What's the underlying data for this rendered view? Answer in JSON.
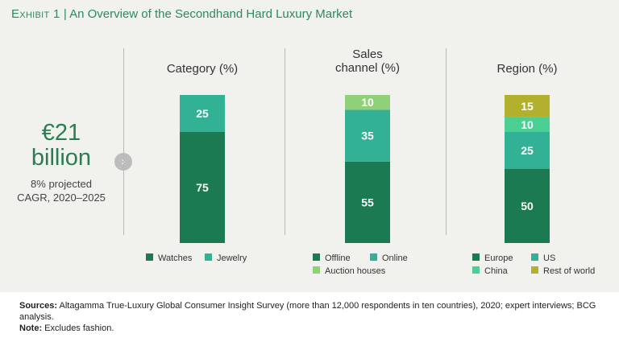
{
  "header": {
    "exhibit": "Exhibit 1",
    "separator": "|",
    "title": "An Overview of the Secondhand Hard Luxury Market"
  },
  "summary": {
    "amount": "€21",
    "unit": "billion",
    "cagr_line1": "8% projected",
    "cagr_line2": "CAGR, 2020–2025",
    "arrow_icon": "chevron-right-icon"
  },
  "colors": {
    "dark_green": "#1b7a52",
    "teal": "#33b195",
    "light_green": "#8fd078",
    "mint": "#4ccf93",
    "olive": "#b2b02c"
  },
  "chart_data": [
    {
      "type": "bar",
      "stacked": true,
      "title": "Category (%)",
      "ylim": [
        0,
        100
      ],
      "segments": [
        {
          "name": "Watches",
          "value": 75,
          "color": "#1b7a52"
        },
        {
          "name": "Jewelry",
          "value": 25,
          "color": "#33b195"
        }
      ],
      "legend_rows": [
        [
          "Watches",
          "Jewelry"
        ]
      ]
    },
    {
      "type": "bar",
      "stacked": true,
      "title": "Sales channel (%)",
      "title_lines": [
        "Sales",
        "channel (%)"
      ],
      "ylim": [
        0,
        100
      ],
      "segments": [
        {
          "name": "Offline",
          "value": 55,
          "color": "#1b7a52"
        },
        {
          "name": "Online",
          "value": 35,
          "color": "#33b195"
        },
        {
          "name": "Auction houses",
          "value": 10,
          "color": "#8fd078"
        }
      ],
      "legend_rows": [
        [
          "Offline",
          "Online"
        ],
        [
          "Auction houses"
        ]
      ]
    },
    {
      "type": "bar",
      "stacked": true,
      "title": "Region (%)",
      "ylim": [
        0,
        100
      ],
      "segments": [
        {
          "name": "Europe",
          "value": 50,
          "color": "#1b7a52"
        },
        {
          "name": "US",
          "value": 25,
          "color": "#33b195"
        },
        {
          "name": "China",
          "value": 10,
          "color": "#4ccf93"
        },
        {
          "name": "Rest of world",
          "value": 15,
          "color": "#b2b02c"
        }
      ],
      "legend_rows": [
        [
          "Europe",
          "US"
        ],
        [
          "China",
          "Rest of world"
        ]
      ]
    }
  ],
  "footer": {
    "sources_label": "Sources:",
    "sources_text": "Altagamma True-Luxury Global Consumer Insight Survey (more than 12,000 respondents in ten countries), 2020; expert interviews; BCG analysis.",
    "note_label": "Note:",
    "note_text": "Excludes fashion."
  }
}
